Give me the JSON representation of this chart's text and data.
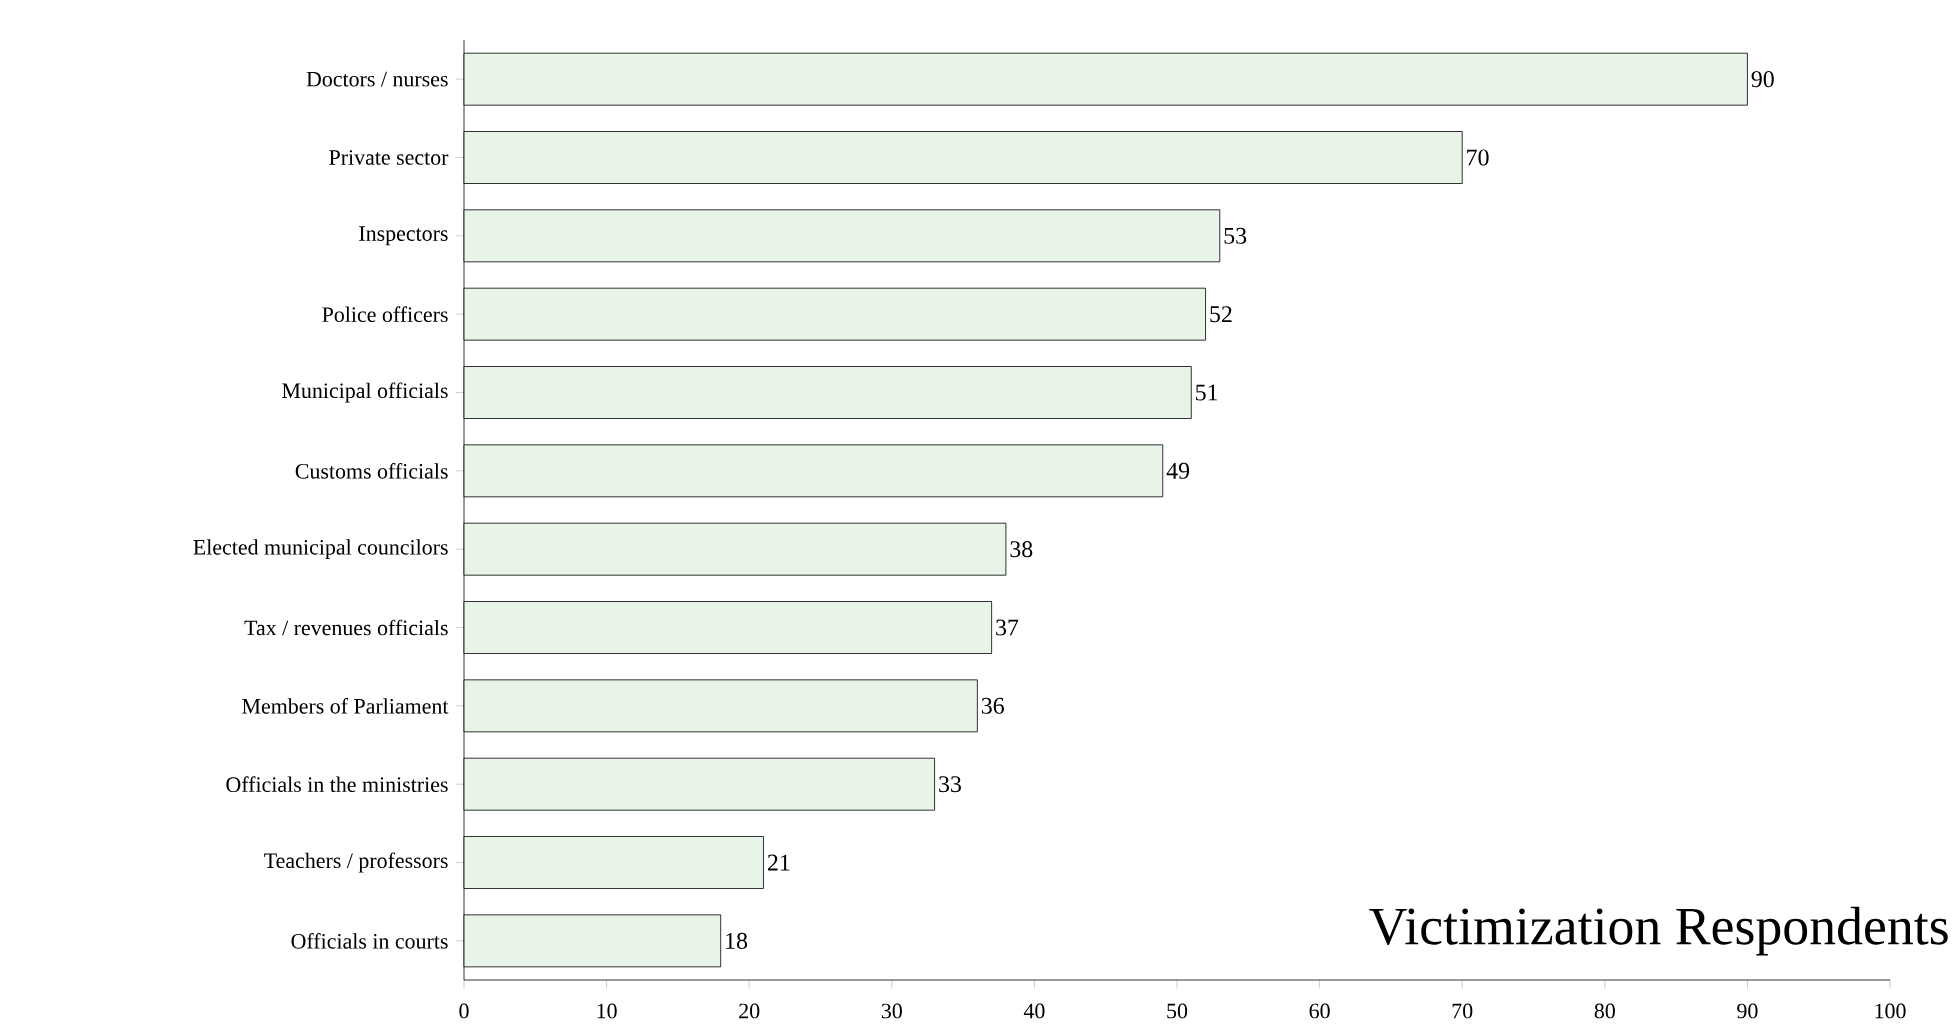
{
  "chart_data": {
    "type": "bar",
    "orientation": "horizontal",
    "categories": [
      "Doctors / nurses",
      "Private sector",
      "Inspectors",
      "Police officers",
      "Municipal officials",
      "Customs officials",
      "Elected municipal councilors",
      "Tax / revenues officials",
      "Members of Parliament",
      "Officials in the ministries",
      "Teachers / professors",
      "Officials in courts"
    ],
    "values": [
      90,
      70,
      53,
      52,
      51,
      49,
      38,
      37,
      36,
      33,
      21,
      18
    ],
    "color": "#e8f4e8",
    "data_labels": true,
    "xlim": [
      0,
      100
    ],
    "xticks": [
      0,
      10,
      20,
      30,
      40,
      50,
      60,
      70,
      80,
      90,
      100
    ],
    "annotations": [
      "Victimization Respondents"
    ]
  }
}
